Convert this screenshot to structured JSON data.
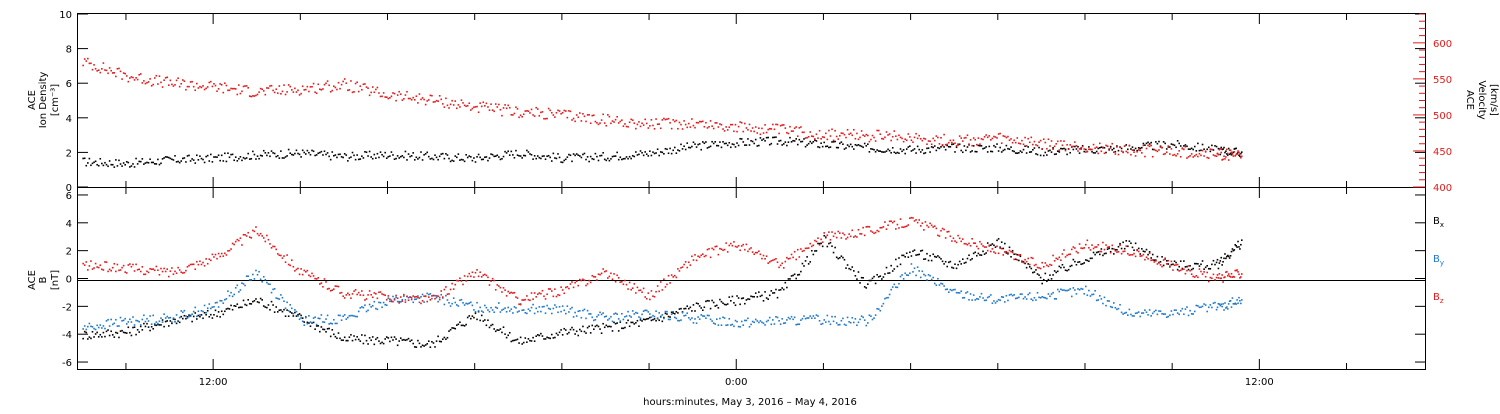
{
  "chart_data": [
    {
      "type": "scatter",
      "ylabel_lines": [
        "ACE",
        "Ion Density",
        "[cm⁻³]"
      ],
      "y_right_label_lines": [
        "ACE",
        "Velocity",
        "[km/s]"
      ],
      "ylim": [
        0,
        10
      ],
      "y_ticks": [
        "0",
        "2",
        "4",
        "6",
        "8",
        "10"
      ],
      "y_right_lim": [
        400,
        640
      ],
      "y_right_ticks": [
        "400",
        "450",
        "500",
        "550",
        "600"
      ],
      "xlim_hours": [
        8.9,
        39.8
      ],
      "series": [
        {
          "name": "Ion Density",
          "color": "#000000",
          "axis": "left",
          "points": [
            [
              9.0,
              1.5
            ],
            [
              10.0,
              1.4
            ],
            [
              11.0,
              1.6
            ],
            [
              12.0,
              1.7
            ],
            [
              13.0,
              1.9
            ],
            [
              14.0,
              2.0
            ],
            [
              15.0,
              1.8
            ],
            [
              16.0,
              1.9
            ],
            [
              17.0,
              1.8
            ],
            [
              18.0,
              1.7
            ],
            [
              19.0,
              2.0
            ],
            [
              20.0,
              1.7
            ],
            [
              21.0,
              1.8
            ],
            [
              22.0,
              2.0
            ],
            [
              23.0,
              2.4
            ],
            [
              24.0,
              2.6
            ],
            [
              25.0,
              2.7
            ],
            [
              26.0,
              2.5
            ],
            [
              27.0,
              2.3
            ],
            [
              28.0,
              2.2
            ],
            [
              29.0,
              2.3
            ],
            [
              30.0,
              2.3
            ],
            [
              31.0,
              2.1
            ],
            [
              32.0,
              2.2
            ],
            [
              33.0,
              2.3
            ],
            [
              34.0,
              2.5
            ],
            [
              35.0,
              2.2
            ],
            [
              35.6,
              2.0
            ]
          ]
        },
        {
          "name": "Velocity",
          "color": "#e41a1c",
          "axis": "right",
          "points": [
            [
              9.0,
              575
            ],
            [
              10.0,
              555
            ],
            [
              11.0,
              545
            ],
            [
              12.0,
              540
            ],
            [
              13.0,
              533
            ],
            [
              14.0,
              537
            ],
            [
              15.0,
              543
            ],
            [
              16.0,
              528
            ],
            [
              17.0,
              522
            ],
            [
              18.0,
              512
            ],
            [
              19.0,
              505
            ],
            [
              20.0,
              501
            ],
            [
              21.0,
              494
            ],
            [
              22.0,
              488
            ],
            [
              23.0,
              490
            ],
            [
              24.0,
              484
            ],
            [
              25.0,
              480
            ],
            [
              26.0,
              474
            ],
            [
              27.0,
              472
            ],
            [
              28.0,
              470
            ],
            [
              29.0,
              465
            ],
            [
              30.0,
              468
            ],
            [
              31.0,
              460
            ],
            [
              32.0,
              456
            ],
            [
              33.0,
              452
            ],
            [
              34.0,
              450
            ],
            [
              35.0,
              447
            ],
            [
              35.6,
              445
            ]
          ]
        }
      ]
    },
    {
      "type": "scatter",
      "ylabel_lines": [
        "ACE",
        "B",
        "[nT]"
      ],
      "ylim": [
        -6.5,
        6.5
      ],
      "y_ticks": [
        "-6",
        "-4",
        "-2",
        "0",
        "2",
        "4",
        "6"
      ],
      "xlim_hours": [
        8.9,
        39.8
      ],
      "legend": [
        {
          "label": "B",
          "sub": "x",
          "color": "#000000"
        },
        {
          "label": "B",
          "sub": "y",
          "color": "#1f78c8"
        },
        {
          "label": "B",
          "sub": "z",
          "color": "#e41a1c"
        }
      ],
      "series": [
        {
          "name": "Bx",
          "color": "#000000",
          "points": [
            [
              9.0,
              -4.0
            ],
            [
              10.0,
              -3.8
            ],
            [
              11.0,
              -3.0
            ],
            [
              12.0,
              -2.5
            ],
            [
              13.0,
              -1.5
            ],
            [
              14.0,
              -2.8
            ],
            [
              15.0,
              -4.3
            ],
            [
              16.0,
              -4.4
            ],
            [
              17.0,
              -4.7
            ],
            [
              18.0,
              -2.5
            ],
            [
              19.0,
              -4.5
            ],
            [
              20.0,
              -3.8
            ],
            [
              21.0,
              -3.5
            ],
            [
              22.0,
              -3.0
            ],
            [
              23.0,
              -2.0
            ],
            [
              24.0,
              -1.5
            ],
            [
              25.0,
              -1.0
            ],
            [
              26.0,
              2.8
            ],
            [
              27.0,
              -0.5
            ],
            [
              28.0,
              2.0
            ],
            [
              29.0,
              1.0
            ],
            [
              30.0,
              2.7
            ],
            [
              31.0,
              0.0
            ],
            [
              32.0,
              1.5
            ],
            [
              33.0,
              2.5
            ],
            [
              34.0,
              1.0
            ],
            [
              35.0,
              1.0
            ],
            [
              35.6,
              2.7
            ]
          ]
        },
        {
          "name": "By",
          "color": "#1f78c8",
          "points": [
            [
              9.0,
              -3.5
            ],
            [
              10.0,
              -3.0
            ],
            [
              11.0,
              -2.8
            ],
            [
              12.0,
              -2.0
            ],
            [
              13.0,
              0.5
            ],
            [
              14.0,
              -3.0
            ],
            [
              15.0,
              -2.8
            ],
            [
              16.0,
              -1.5
            ],
            [
              17.0,
              -1.3
            ],
            [
              18.0,
              -2.0
            ],
            [
              19.0,
              -2.1
            ],
            [
              20.0,
              -2.2
            ],
            [
              21.0,
              -2.8
            ],
            [
              22.0,
              -2.5
            ],
            [
              23.0,
              -2.8
            ],
            [
              24.0,
              -3.1
            ],
            [
              25.0,
              -3.0
            ],
            [
              26.0,
              -2.9
            ],
            [
              27.0,
              -3.0
            ],
            [
              28.0,
              0.8
            ],
            [
              29.0,
              -1.0
            ],
            [
              30.0,
              -1.5
            ],
            [
              31.0,
              -1.2
            ],
            [
              32.0,
              -0.8
            ],
            [
              33.0,
              -2.5
            ],
            [
              34.0,
              -2.4
            ],
            [
              35.0,
              -2.0
            ],
            [
              35.6,
              -1.5
            ]
          ]
        },
        {
          "name": "Bz",
          "color": "#e41a1c",
          "points": [
            [
              9.0,
              1.0
            ],
            [
              10.0,
              0.8
            ],
            [
              11.0,
              0.5
            ],
            [
              12.0,
              1.5
            ],
            [
              13.0,
              3.5
            ],
            [
              14.0,
              0.5
            ],
            [
              15.0,
              -1.0
            ],
            [
              16.0,
              -1.3
            ],
            [
              17.0,
              -1.5
            ],
            [
              18.0,
              0.5
            ],
            [
              19.0,
              -1.5
            ],
            [
              20.0,
              -0.8
            ],
            [
              21.0,
              0.5
            ],
            [
              22.0,
              -1.2
            ],
            [
              23.0,
              1.5
            ],
            [
              24.0,
              2.5
            ],
            [
              25.0,
              1.0
            ],
            [
              26.0,
              3.0
            ],
            [
              27.0,
              3.5
            ],
            [
              28.0,
              4.2
            ],
            [
              29.0,
              3.0
            ],
            [
              30.0,
              2.0
            ],
            [
              31.0,
              1.0
            ],
            [
              32.0,
              2.5
            ],
            [
              33.0,
              2.0
            ],
            [
              34.0,
              1.0
            ],
            [
              35.0,
              0.0
            ],
            [
              35.6,
              0.5
            ]
          ]
        }
      ]
    }
  ],
  "x_axis": {
    "ticks": [
      {
        "hour": 12,
        "label": "12:00"
      },
      {
        "hour": 24,
        "label": "0:00"
      },
      {
        "hour": 36,
        "label": "12:00"
      }
    ],
    "title": "hours:minutes, May  3, 2016 – May  4, 2016"
  }
}
